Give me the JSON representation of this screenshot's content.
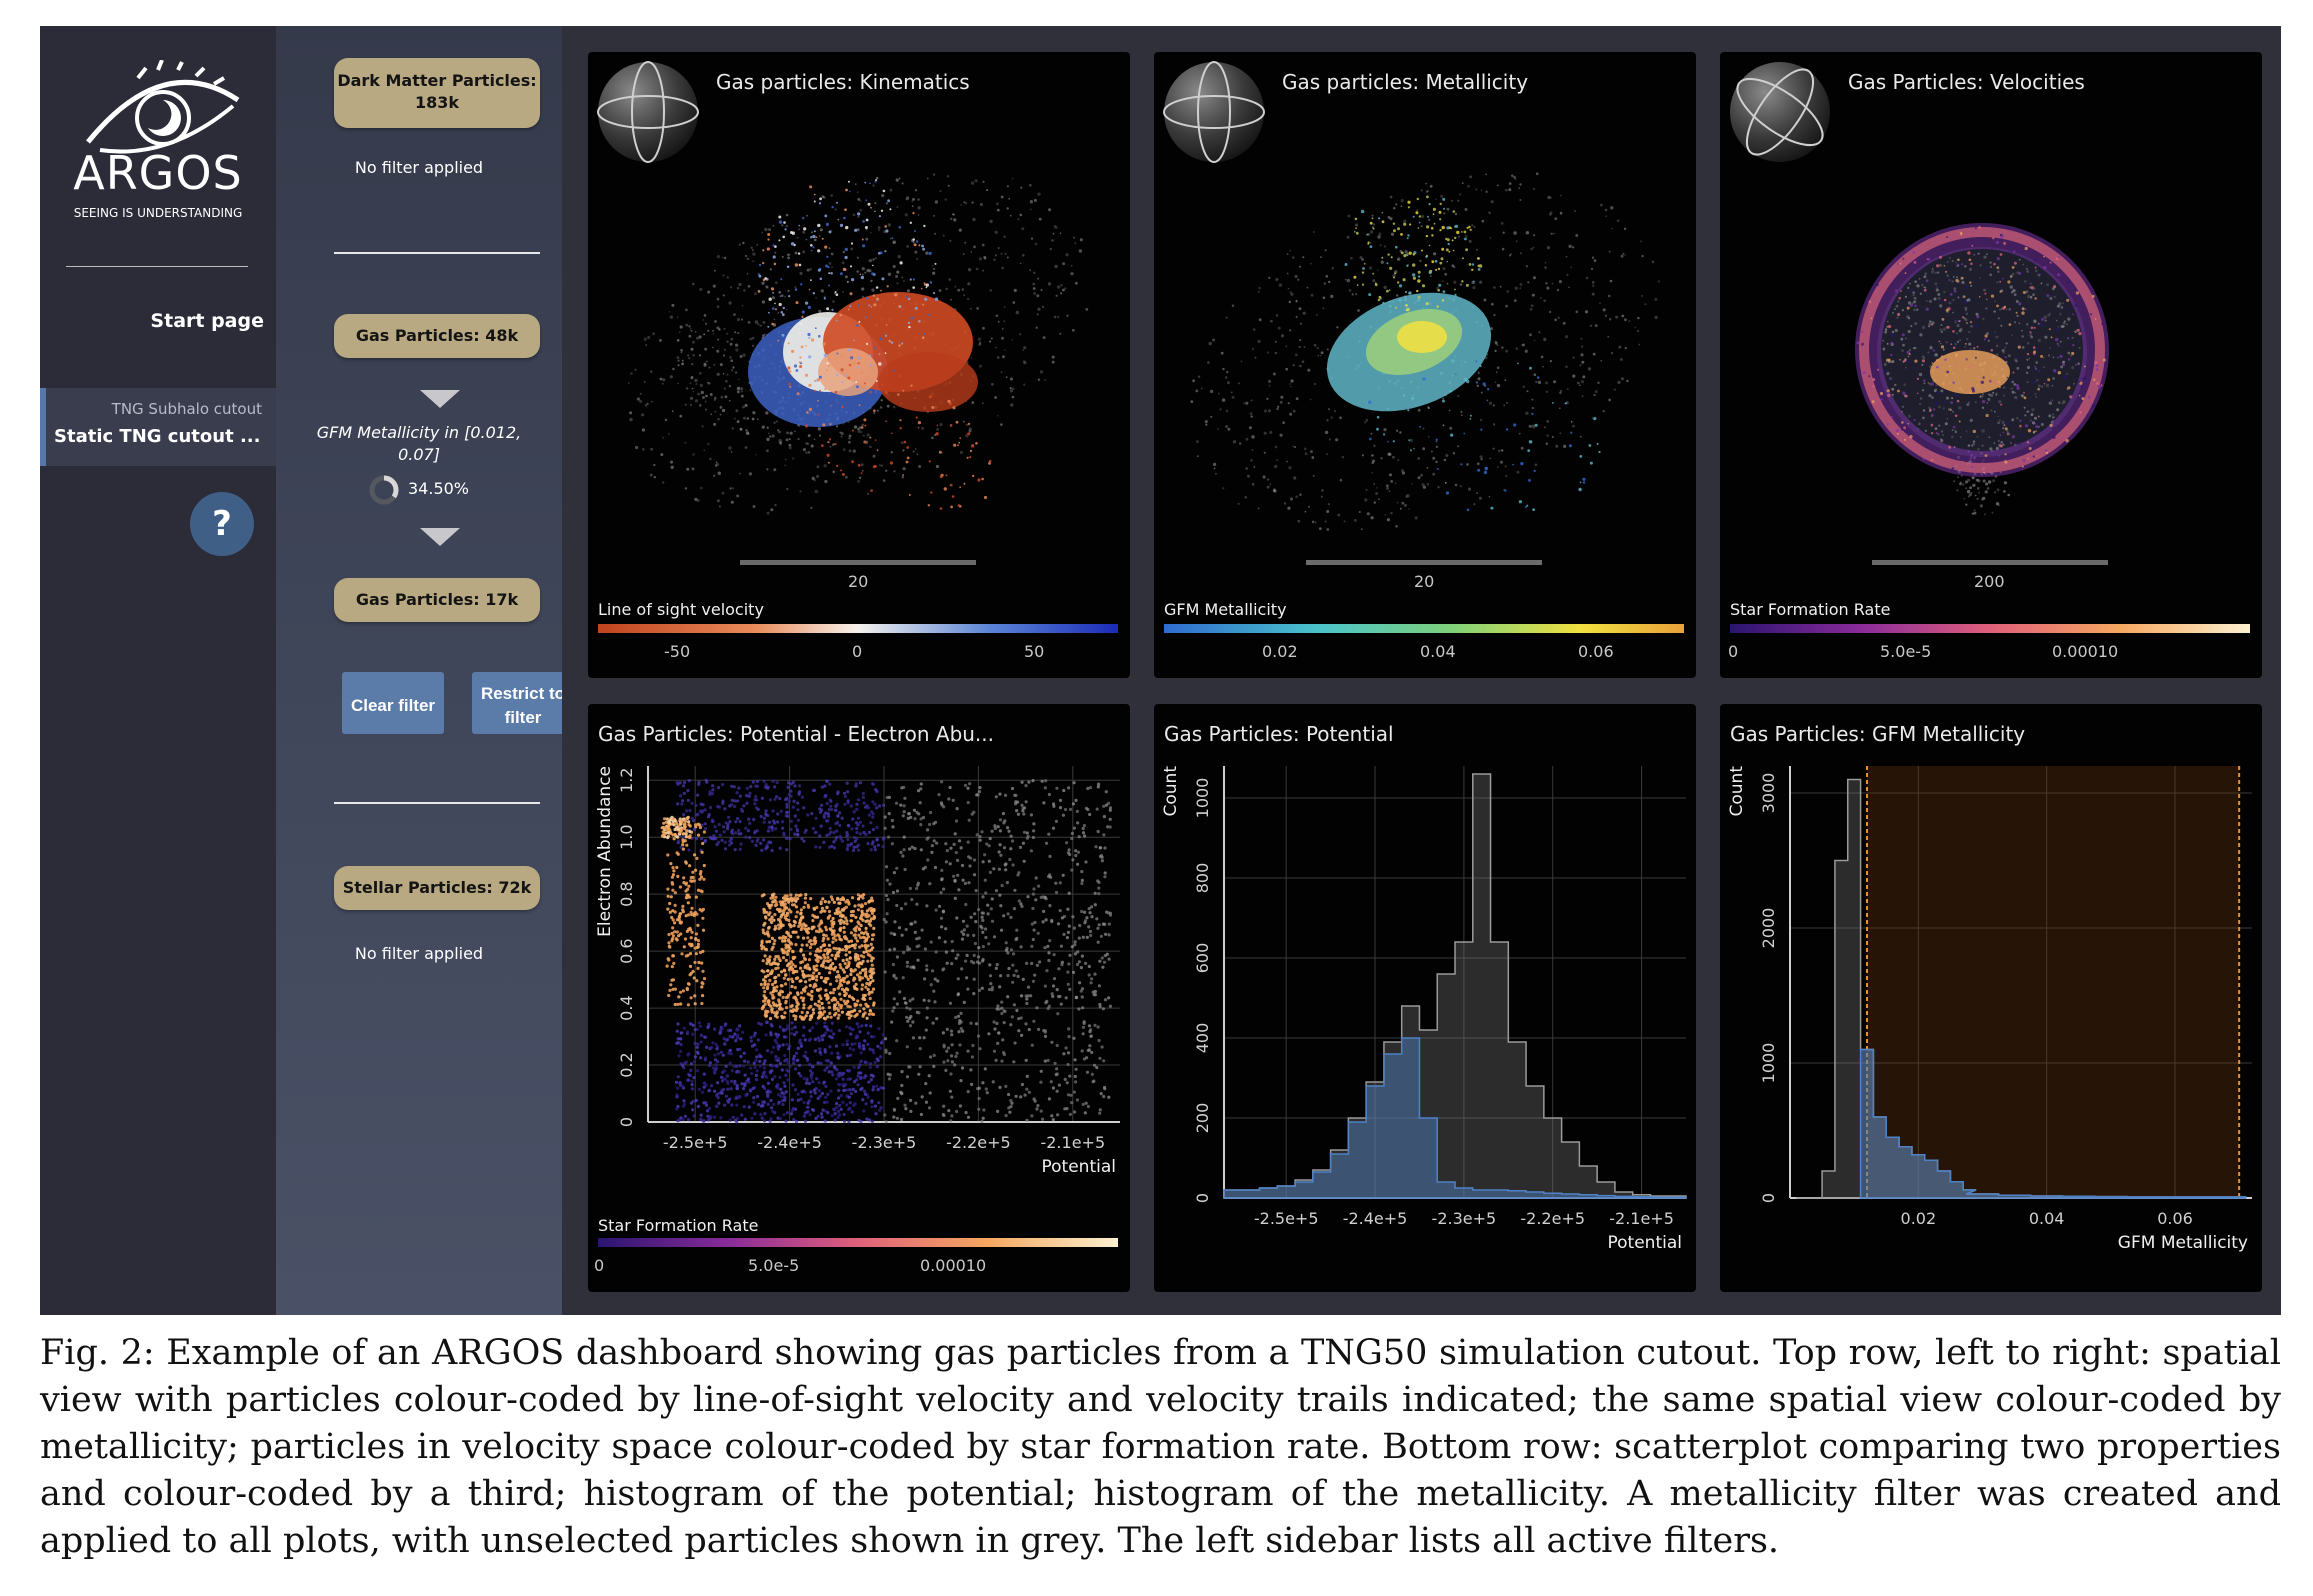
{
  "app": {
    "name": "ARGOS",
    "tagline": "SEEING IS UNDERSTANDING"
  },
  "nav": {
    "start_page": "Start page",
    "active_item": {
      "subtitle": "TNG Subhalo cutout",
      "title": "Static TNG cutout ..."
    },
    "help": "?"
  },
  "filters": {
    "dark_matter": {
      "label": "Dark Matter Particles:",
      "count": "183k",
      "note": "No filter applied"
    },
    "gas_total": {
      "label": "Gas Particles: 48k"
    },
    "filter_condition": "GFM Metallicity in [0.012, 0.07]",
    "filter_percent": "34.50%",
    "filter_fraction": 0.345,
    "gas_filtered": {
      "label": "Gas Particles: 17k"
    },
    "clear_button": "Clear filter",
    "restrict_button": "Restrict to filter",
    "stellar": {
      "label": "Stellar Particles: 72k",
      "note": "No filter applied"
    }
  },
  "panels": {
    "kinematics": {
      "title": "Gas particles: Kinematics",
      "scale": "20",
      "colorbar_label": "Line of sight velocity",
      "ticks": [
        "-50",
        "0",
        "50"
      ],
      "colors": [
        "#c0431e",
        "#e88b5a",
        "#f5f2ee",
        "#5d86d6",
        "#1a2bb8"
      ]
    },
    "metallicity": {
      "title": "Gas particles: Metallicity",
      "scale": "20",
      "colorbar_label": "GFM Metallicity",
      "ticks": [
        "0.02",
        "0.04",
        "0.06"
      ],
      "colors": [
        "#2f6bd0",
        "#4bc4c9",
        "#7ed07a",
        "#f0e040",
        "#e8a23a"
      ]
    },
    "velocities": {
      "title": "Gas Particles: Velocities",
      "scale": "200",
      "colorbar_label": "Star Formation Rate",
      "ticks": [
        "0",
        "5.0e-5",
        "0.00010"
      ],
      "colors": [
        "#2a1470",
        "#8a2b9a",
        "#e0607a",
        "#f5a860",
        "#fbf1d0"
      ]
    },
    "scatter": {
      "title": "Gas Particles: Potential - Electron Abu...",
      "colorbar_label": "Star Formation Rate",
      "ticks": [
        "0",
        "5.0e-5",
        "0.00010"
      ]
    },
    "hist_potential": {
      "title": "Gas Particles: Potential"
    },
    "hist_metallicity": {
      "title": "Gas Particles: GFM Metallicity"
    }
  },
  "chart_data": [
    {
      "type": "scatter",
      "title": "Gas Particles: Potential - Electron Abu...",
      "xlabel": "Potential",
      "ylabel": "Electron Abundance",
      "x_ticks": [
        -250000,
        -240000,
        -230000,
        -220000,
        -210000
      ],
      "x_tick_labels": [
        "-2.5e+5",
        "-2.4e+5",
        "-2.3e+5",
        "-2.2e+5",
        "-2.1e+5"
      ],
      "y_ticks": [
        0,
        0.2,
        0.4,
        0.6,
        0.8,
        1.0,
        1.2
      ],
      "y_tick_labels": [
        "0",
        "0.2",
        "0.4",
        "0.6",
        "0.8",
        "1.0",
        "1.2"
      ],
      "xlim": [
        -255000,
        -205000
      ],
      "ylim": [
        0,
        1.25
      ],
      "grid": true,
      "color_by": "Star Formation Rate"
    },
    {
      "type": "bar",
      "title": "Gas Particles: Potential",
      "xlabel": "Potential",
      "ylabel": "Count",
      "x_ticks": [
        -250000,
        -240000,
        -230000,
        -220000,
        -210000
      ],
      "x_tick_labels": [
        "-2.5e+5",
        "-2.4e+5",
        "-2.3e+5",
        "-2.2e+5",
        "-2.1e+5"
      ],
      "y_ticks": [
        0,
        200,
        400,
        600,
        800,
        1000
      ],
      "y_tick_labels": [
        "0",
        "200",
        "400",
        "600",
        "800",
        "1000"
      ],
      "xlim": [
        -257000,
        -205000
      ],
      "ylim": [
        0,
        1080
      ],
      "grid": true,
      "series": [
        {
          "color": "#7a7a7a",
          "x": [
            -256000,
            -254000,
            -252000,
            -250000,
            -248000,
            -246000,
            -244000,
            -242000,
            -240000,
            -238000,
            -236000,
            -234000,
            -232000,
            -230000,
            -228000,
            -226000,
            -224000,
            -222000,
            -220000,
            -218000,
            -216000,
            -214000,
            -212000,
            -210000,
            -208000,
            -206000
          ],
          "values": [
            20,
            20,
            25,
            30,
            45,
            70,
            120,
            200,
            290,
            390,
            480,
            420,
            560,
            640,
            1060,
            640,
            390,
            280,
            200,
            140,
            80,
            40,
            15,
            8,
            5,
            5
          ]
        },
        {
          "color": "#4f82c8",
          "x": [
            -256000,
            -254000,
            -252000,
            -250000,
            -248000,
            -246000,
            -244000,
            -242000,
            -240000,
            -238000,
            -236000,
            -234000,
            -232000,
            -230000,
            -228000,
            -226000,
            -224000,
            -222000,
            -220000,
            -218000,
            -216000,
            -214000,
            -212000,
            -210000,
            -208000,
            -206000
          ],
          "values": [
            20,
            20,
            25,
            30,
            40,
            65,
            110,
            190,
            280,
            360,
            400,
            200,
            40,
            25,
            20,
            20,
            18,
            15,
            12,
            10,
            8,
            6,
            4,
            3,
            2,
            2
          ]
        }
      ]
    },
    {
      "type": "bar",
      "title": "Gas Particles: GFM Metallicity",
      "xlabel": "GFM Metallicity",
      "ylabel": "Count",
      "x_ticks": [
        0.02,
        0.04,
        0.06
      ],
      "x_tick_labels": [
        "0.02",
        "0.04",
        "0.06"
      ],
      "y_ticks": [
        0,
        1000,
        2000,
        3000
      ],
      "y_tick_labels": [
        "0",
        "1000",
        "2000",
        "3000"
      ],
      "xlim": [
        0,
        0.072
      ],
      "ylim": [
        0,
        3200
      ],
      "grid": true,
      "selection_range": [
        0.012,
        0.07
      ],
      "series": [
        {
          "color": "#7a7a7a",
          "x": [
            0.002,
            0.004,
            0.006,
            0.008,
            0.01,
            0.012,
            0.014,
            0.016,
            0.018,
            0.02,
            0.022,
            0.024,
            0.026,
            0.028,
            0.03,
            0.035,
            0.04,
            0.045,
            0.05,
            0.055,
            0.06,
            0.065,
            0.07
          ],
          "values": [
            0,
            0,
            200,
            2500,
            3100,
            1100,
            600,
            450,
            380,
            320,
            280,
            200,
            120,
            60,
            30,
            20,
            15,
            12,
            10,
            8,
            8,
            8,
            8
          ]
        },
        {
          "color": "#4f82c8",
          "x": [
            0.012,
            0.014,
            0.016,
            0.018,
            0.02,
            0.022,
            0.024,
            0.026,
            0.028,
            0.03,
            0.035,
            0.04,
            0.045,
            0.05,
            0.055,
            0.06,
            0.065,
            0.07
          ],
          "values": [
            1100,
            600,
            450,
            380,
            320,
            280,
            200,
            120,
            60,
            30,
            20,
            15,
            12,
            10,
            8,
            8,
            8,
            8
          ]
        }
      ]
    }
  ],
  "caption": "Fig. 2: Example of an ARGOS dashboard showing gas particles from a TNG50 simulation cutout. Top row, left to right: spatial view with particles colour-coded by line-of-sight velocity and velocity trails indicated; the same spatial view colour-coded by metallicity; particles in velocity space colour-coded by star formation rate. Bottom row: scatterplot comparing two properties and colour-coded by a third; histogram of the potential; histogram of the metallicity. A metallicity filter was created and applied to all plots, with unselected particles shown in grey. The left sidebar lists all active filters."
}
